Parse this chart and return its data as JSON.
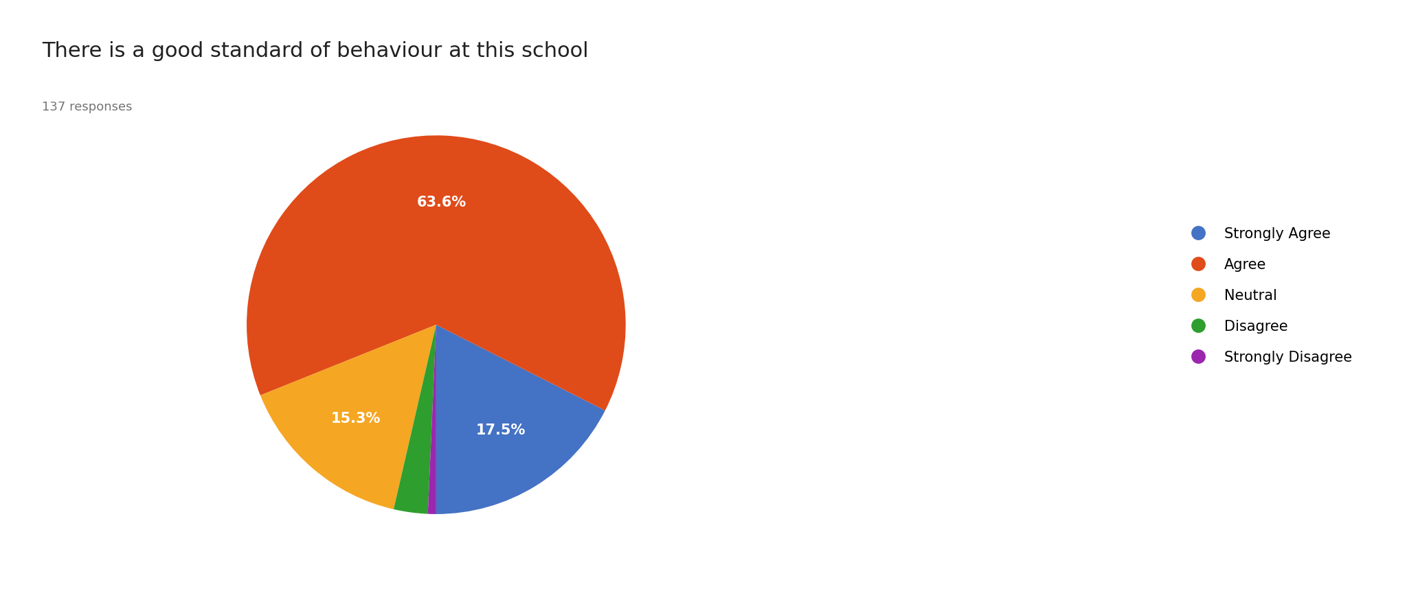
{
  "title": "There is a good standard of behaviour at this school",
  "subtitle": "137 responses",
  "labels": [
    "Strongly Agree",
    "Agree",
    "Neutral",
    "Disagree",
    "Strongly Disagree"
  ],
  "legend_colors": [
    "#4472C4",
    "#E04B1A",
    "#F5A623",
    "#2E9E2E",
    "#9B27AF"
  ],
  "ordered_sizes": [
    17.5,
    63.5,
    15.3,
    2.9,
    0.7
  ],
  "ordered_colors": [
    "#4472C4",
    "#E04B1A",
    "#F5A623",
    "#2E9E2E",
    "#9B27AF"
  ],
  "startangle": 270,
  "title_fontsize": 22,
  "subtitle_fontsize": 13,
  "legend_fontsize": 15,
  "label_fontsize": 15,
  "pct_distance": 0.65,
  "background_color": "#ffffff"
}
